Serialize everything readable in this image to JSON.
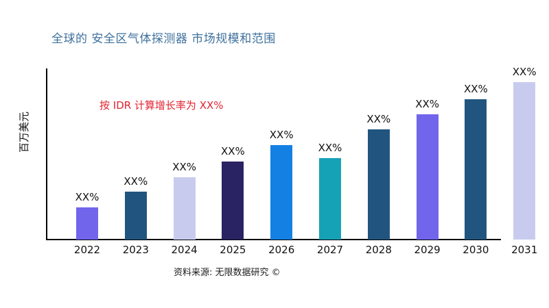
{
  "title": "全球的 安全区气体探测器 市场规模和范围",
  "annotation": "按 IDR 计算增长率为 XX%",
  "source": "资料来源: 无限数据研究 ©",
  "colors": {
    "title": "#3f719c",
    "annotation": "#e32230",
    "axis": "#000000",
    "labels": "#111111"
  },
  "chart_data": {
    "type": "bar",
    "title": "全球的 安全区气体探测器 市场规模和范围",
    "xlabel": "",
    "ylabel": "百万美元",
    "categories": [
      "2022",
      "2023",
      "2024",
      "2025",
      "2026",
      "2027",
      "2028",
      "2029",
      "2030",
      "2031"
    ],
    "values": [
      47,
      70,
      91,
      114,
      138,
      119,
      161,
      183,
      205,
      230
    ],
    "value_labels": [
      "XX%",
      "XX%",
      "XX%",
      "XX%",
      "XX%",
      "XX%",
      "XX%",
      "XX%",
      "XX%",
      "XX%"
    ],
    "bar_colors": [
      "#7165ec",
      "#21557f",
      "#c9cbee",
      "#292363",
      "#1480e4",
      "#16a2b6",
      "#21557f",
      "#7165ec",
      "#21557f",
      "#c9cbee"
    ],
    "ylim": [
      0,
      250
    ],
    "grid": false,
    "legend": false,
    "annotation": "按 IDR 计算增长率为 XX%"
  }
}
